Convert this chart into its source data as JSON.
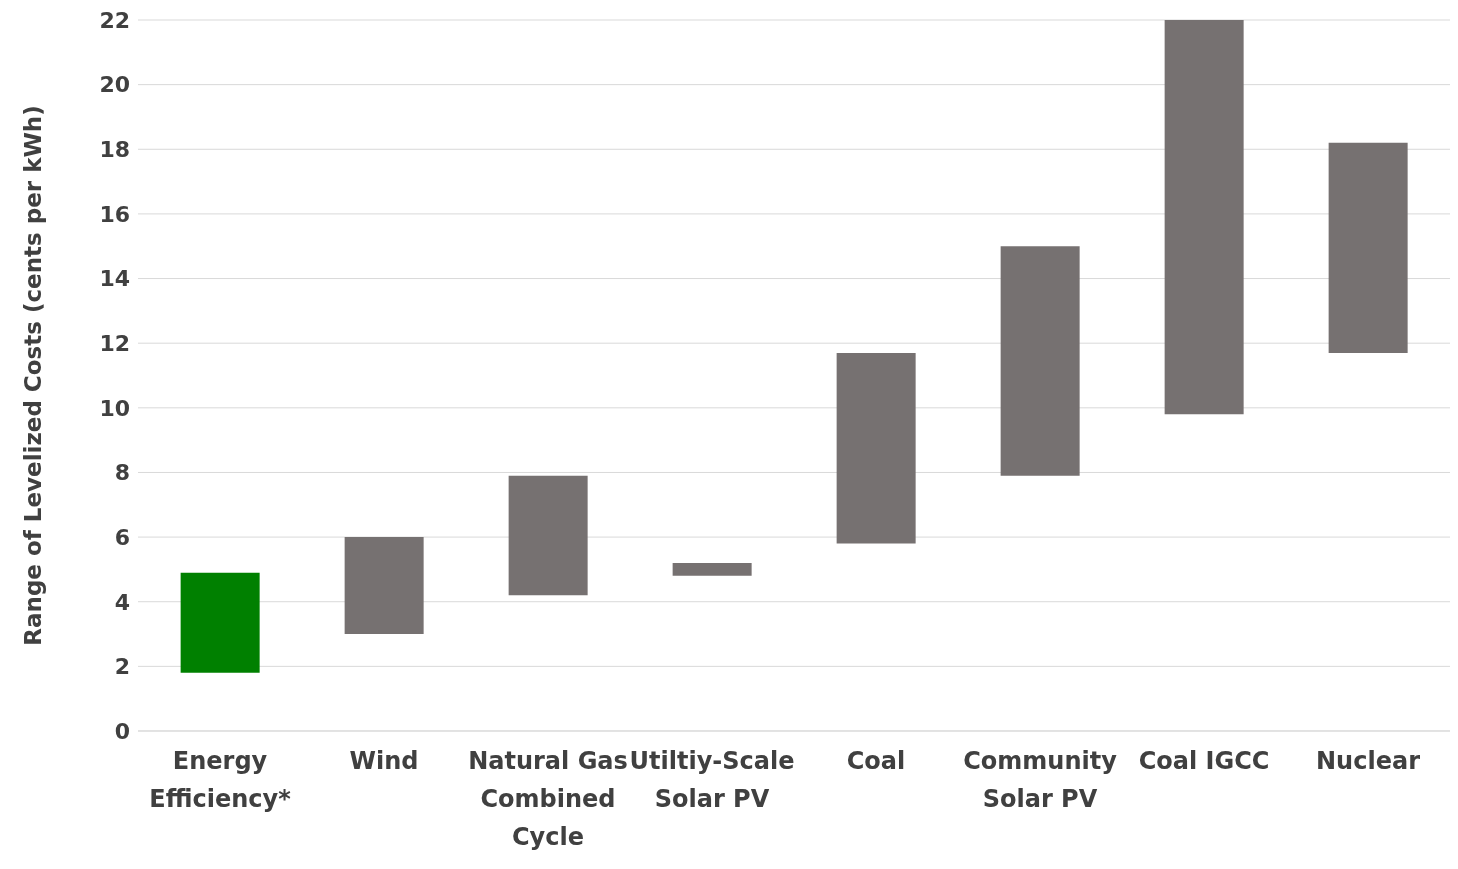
{
  "chart_data": {
    "type": "bar",
    "ylabel": "Range of Levelized Costs (cents per kWh)",
    "categories": [
      "Energy Efficiency*",
      "Wind",
      "Natural Gas Combined Cycle",
      "Utiltiy-Scale Solar PV",
      "Coal",
      "Community Solar PV",
      "Coal IGCC",
      "Nuclear"
    ],
    "base": [
      1.8,
      3.0,
      4.2,
      4.8,
      5.8,
      7.9,
      9.8,
      11.7
    ],
    "values": [
      3.1,
      3.0,
      3.7,
      0.4,
      5.9,
      7.1,
      12.2,
      6.5
    ],
    "colors": [
      "#008000",
      "#767171",
      "#767171",
      "#767171",
      "#767171",
      "#767171",
      "#767171",
      "#767171"
    ],
    "ylim": [
      0,
      22
    ],
    "yticks": [
      0,
      2,
      4,
      6,
      8,
      10,
      12,
      14,
      16,
      18,
      20,
      22
    ],
    "grid": "y",
    "legend": false
  }
}
